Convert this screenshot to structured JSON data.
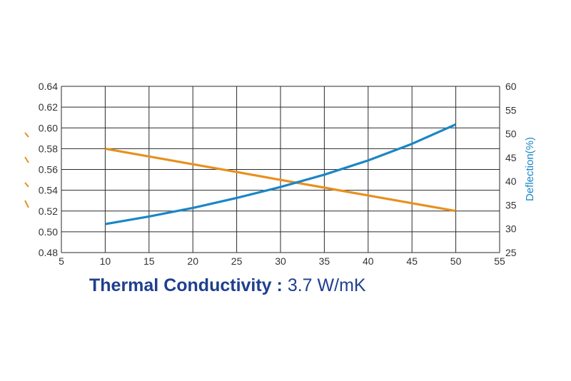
{
  "chart_data": {
    "type": "line",
    "x": [
      10,
      15,
      20,
      25,
      30,
      35,
      40,
      45,
      50
    ],
    "xlim": [
      5,
      55
    ],
    "xticks": [
      "5",
      "10",
      "15",
      "20",
      "25",
      "30",
      "35",
      "40",
      "45",
      "50",
      "55"
    ],
    "ylim_left": [
      0.48,
      0.64
    ],
    "yticks_left": [
      "0.48",
      "0.50",
      "0.52",
      "0.54",
      "0.56",
      "0.58",
      "0.60",
      "0.62",
      "0.64"
    ],
    "ylim_right": [
      25,
      60
    ],
    "yticks_right": [
      "25",
      "30",
      "35",
      "40",
      "45",
      "50",
      "55",
      "60"
    ],
    "ylabel_right": "Deflection(%)",
    "ylabel_left_color": "#e8901f",
    "grid": true,
    "series": [
      {
        "axis": "left",
        "color": "#e8901f",
        "values": [
          0.58,
          0.5725,
          0.565,
          0.5575,
          0.55,
          0.5425,
          0.535,
          0.5275,
          0.52
        ]
      },
      {
        "axis": "right",
        "color": "#1a86c7",
        "values": [
          31.0,
          32.6,
          34.4,
          36.5,
          38.8,
          41.4,
          44.4,
          47.9,
          52.0
        ]
      }
    ]
  },
  "caption": {
    "label": "Thermal Conductivity :",
    "value": "3.7 W/mK",
    "color": "#1f3f8f"
  }
}
